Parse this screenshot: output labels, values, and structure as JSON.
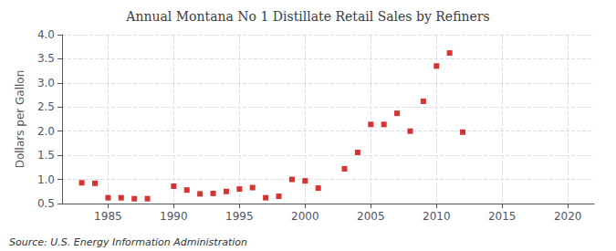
{
  "chart_data": {
    "type": "scatter",
    "title": "Annual Montana No 1 Distillate Retail Sales by Refiners",
    "ylabel": "Dollars per Gallon",
    "annotations": [
      "Source: U.S. Energy Information Administration"
    ],
    "color": "#cc0000",
    "marker": "square",
    "grid": true,
    "xlim": [
      1981.5,
      2022
    ],
    "ylim": [
      0.5,
      4.0
    ],
    "xticks": [
      1985,
      1990,
      1995,
      2000,
      2005,
      2010,
      2015,
      2020
    ],
    "yticks": [
      0.5,
      {
        "value": 1.0,
        "label": "1.0"
      },
      1.5,
      {
        "value": 2.0,
        "label": "2.0"
      },
      2.5,
      {
        "value": 3.0,
        "label": "3.0"
      },
      3.5,
      {
        "value": 4.0,
        "label": "4.0"
      }
    ],
    "x": [
      1983,
      1984,
      1985,
      1986,
      1987,
      1988,
      1990,
      1991,
      1992,
      1993,
      1994,
      1995,
      1996,
      1997,
      1998,
      1999,
      2000,
      2001,
      2003,
      2004,
      2005,
      2006,
      2007,
      2008,
      2009,
      2010,
      2011,
      2012
    ],
    "values": [
      0.93,
      0.92,
      0.62,
      0.62,
      0.6,
      0.6,
      0.86,
      0.78,
      0.7,
      0.71,
      0.75,
      0.8,
      0.83,
      0.62,
      0.65,
      1.0,
      0.97,
      0.82,
      1.22,
      1.56,
      2.14,
      2.14,
      2.37,
      2.0,
      2.62,
      3.35,
      3.62,
      1.98
    ]
  }
}
